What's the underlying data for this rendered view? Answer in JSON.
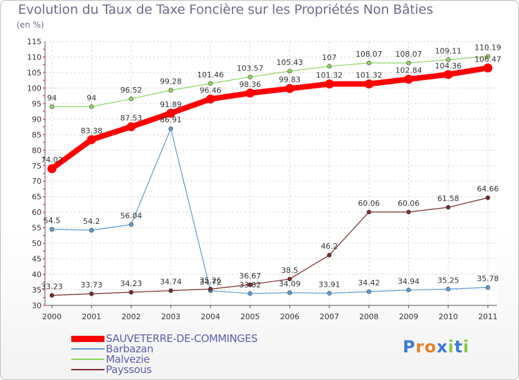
{
  "title": "Evolution du Taux de Taxe Foncière sur les Propriétés Non Bâties",
  "unit": "(en %)",
  "logo": {
    "text": "Proxiti",
    "letters": [
      "P",
      "r",
      "o",
      "x",
      "i",
      "t",
      "i"
    ],
    "colors": [
      "#3a7bd5",
      "#e2832b",
      "#e2832b",
      "#3a7bd5",
      "#8cc63f",
      "#3a7bd5",
      "#8cc63f"
    ]
  },
  "chart_data": {
    "type": "line",
    "title": "Evolution du Taux de Taxe Foncière sur les Propriétés Non Bâties",
    "ylabel": "(en %)",
    "x": [
      "2000",
      "2001",
      "2002",
      "2003",
      "2004",
      "2005",
      "2006",
      "2007",
      "2008",
      "2009",
      "2010",
      "2011"
    ],
    "ylim": [
      30,
      115
    ],
    "yticks": [
      30,
      35,
      40,
      45,
      50,
      55,
      60,
      65,
      70,
      75,
      80,
      85,
      90,
      95,
      100,
      105,
      110,
      115
    ],
    "grid": true,
    "legend_position": "bottom-left",
    "series": [
      {
        "name": "SAUVETERRE-DE-COMMINGES",
        "color": "#ff0000",
        "emphasis": true,
        "values": [
          74.02,
          83.38,
          87.53,
          91.89,
          96.46,
          98.36,
          99.83,
          101.32,
          101.32,
          102.84,
          104.36,
          106.47
        ],
        "labels": [
          "74.02",
          "83.38",
          "87.53",
          "91.89",
          "96.46",
          "98.36",
          "99.83",
          "101.32",
          "101.32",
          "102.84",
          "104.36",
          "106.47"
        ]
      },
      {
        "name": "Barbazan",
        "color": "#5b9bd5",
        "values": [
          54.5,
          54.2,
          56.04,
          86.91,
          34.72,
          33.82,
          34.09,
          33.91,
          34.42,
          34.94,
          35.25,
          35.78
        ],
        "labels": [
          "54.5",
          "54.2",
          "56.04",
          "86.91",
          "34.72",
          "33.82",
          "34.09",
          "33.91",
          "34.42",
          "34.94",
          "35.25",
          "35.78"
        ]
      },
      {
        "name": "Malvezie",
        "color": "#8ed360",
        "values": [
          94,
          94,
          96.52,
          99.28,
          101.46,
          103.57,
          105.43,
          107,
          108.07,
          108.07,
          109.11,
          110.19
        ],
        "labels": [
          "94",
          "94",
          "96.52",
          "99.28",
          "101.46",
          "103.57",
          "105.43",
          "107",
          "108.07",
          "108.07",
          "109.11",
          "110.19"
        ]
      },
      {
        "name": "Payssous",
        "color": "#7a2a2a",
        "values": [
          33.23,
          33.73,
          34.23,
          34.74,
          35.26,
          36.67,
          38.5,
          46.2,
          60.06,
          60.06,
          61.58,
          64.66
        ],
        "labels": [
          "33.23",
          "33.73",
          "34.23",
          "34.74",
          "35.26",
          "36.67",
          "38.5",
          "46.2",
          "60.06",
          "60.06",
          "61.58",
          "64.66"
        ]
      }
    ]
  }
}
